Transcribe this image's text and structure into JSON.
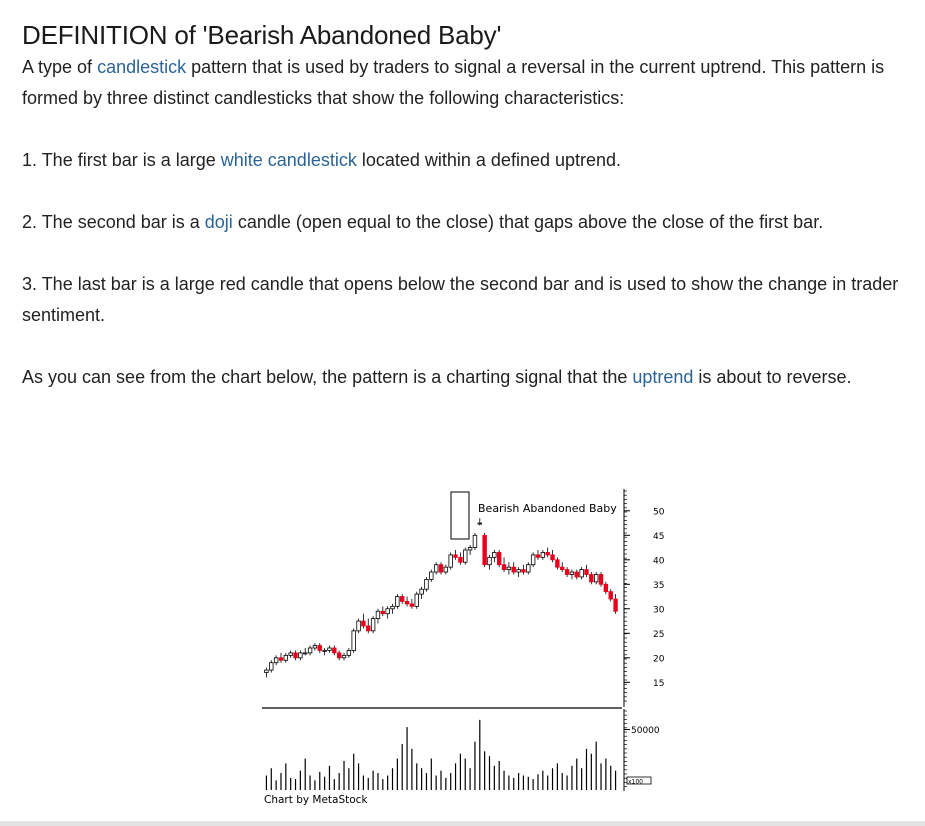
{
  "article": {
    "title": "DEFINITION of 'Bearish Abandoned Baby'",
    "intro": {
      "before": "A type of ",
      "link": "candlestick",
      "after": " pattern that is used by traders to signal a reversal in the current uptrend. This pattern is formed by three distinct candlesticks that show the following characteristics:"
    },
    "points": [
      {
        "before": "1. The first bar is a large ",
        "link": "white candlestick",
        "after": " located within a defined uptrend."
      },
      {
        "before": "2. The second bar is a ",
        "link": "doji",
        "after": " candle (open equal to the close) that gaps above the close of the first bar."
      },
      {
        "before": "3. The last bar is a large red candle that opens below the second bar and is used to show the change in trader sentiment.",
        "link": "",
        "after": ""
      }
    ],
    "closing": {
      "before": "As you can see from the chart below, the pattern is a charting signal that the ",
      "link": "uptrend",
      "after": " is about to reverse."
    }
  },
  "figure": {
    "annotation": "Bearish Abandoned Baby",
    "price_ticks": [
      "50",
      "45",
      "40",
      "35",
      "30",
      "25",
      "20",
      "15"
    ],
    "volume_tick": "50000",
    "volume_unit": "x100",
    "credit": "Chart by MetaStock",
    "colors": {
      "up": "#ffffff",
      "down": "#e8001c",
      "outline": "#000000"
    },
    "price_ylim": [
      12,
      52
    ],
    "ohlc": [
      [
        17.0,
        18.0,
        16.0,
        17.5
      ],
      [
        17.5,
        19.5,
        17.0,
        19.0
      ],
      [
        19.0,
        20.5,
        18.5,
        20.0
      ],
      [
        20.0,
        21.0,
        19.0,
        19.5
      ],
      [
        19.5,
        21.0,
        19.0,
        20.5
      ],
      [
        20.5,
        21.5,
        20.0,
        21.0
      ],
      [
        21.0,
        21.5,
        19.5,
        20.0
      ],
      [
        20.0,
        21.5,
        19.5,
        21.0
      ],
      [
        21.0,
        22.0,
        20.5,
        21.0
      ],
      [
        21.0,
        22.5,
        20.5,
        22.0
      ],
      [
        22.0,
        23.0,
        21.5,
        22.5
      ],
      [
        22.5,
        23.0,
        21.0,
        21.5
      ],
      [
        21.5,
        22.0,
        20.5,
        21.5
      ],
      [
        21.5,
        22.5,
        21.0,
        22.0
      ],
      [
        22.0,
        22.5,
        20.5,
        21.0
      ],
      [
        21.0,
        21.5,
        19.5,
        20.0
      ],
      [
        20.0,
        21.0,
        19.5,
        20.5
      ],
      [
        20.5,
        22.0,
        20.0,
        21.5
      ],
      [
        21.5,
        26.0,
        21.0,
        25.5
      ],
      [
        25.5,
        28.0,
        25.0,
        27.5
      ],
      [
        27.5,
        29.0,
        26.0,
        26.5
      ],
      [
        26.5,
        28.0,
        25.0,
        25.5
      ],
      [
        25.5,
        28.5,
        25.0,
        28.0
      ],
      [
        28.0,
        30.0,
        27.0,
        29.5
      ],
      [
        29.5,
        30.5,
        28.5,
        29.0
      ],
      [
        29.0,
        30.5,
        28.0,
        30.0
      ],
      [
        30.0,
        31.0,
        29.0,
        30.5
      ],
      [
        30.5,
        33.0,
        30.0,
        32.5
      ],
      [
        32.5,
        33.0,
        31.0,
        31.5
      ],
      [
        31.5,
        32.5,
        30.5,
        31.0
      ],
      [
        31.0,
        32.0,
        30.0,
        30.5
      ],
      [
        30.5,
        33.5,
        30.0,
        33.0
      ],
      [
        33.0,
        34.5,
        32.0,
        34.0
      ],
      [
        34.0,
        36.5,
        33.5,
        36.0
      ],
      [
        36.0,
        38.0,
        35.5,
        37.5
      ],
      [
        37.5,
        39.5,
        37.0,
        39.0
      ],
      [
        39.0,
        39.5,
        37.0,
        37.5
      ],
      [
        37.5,
        39.0,
        37.0,
        38.5
      ],
      [
        38.5,
        41.5,
        38.0,
        41.0
      ],
      [
        41.0,
        42.0,
        40.0,
        40.5
      ],
      [
        40.5,
        41.5,
        39.0,
        39.5
      ],
      [
        39.5,
        42.5,
        39.0,
        42.0
      ],
      [
        42.0,
        43.0,
        41.0,
        42.5
      ],
      [
        42.5,
        45.5,
        42.0,
        45.0
      ],
      [
        47.5,
        48.5,
        47.0,
        47.5
      ],
      [
        45.0,
        45.5,
        38.5,
        39.0
      ],
      [
        39.0,
        41.0,
        38.0,
        40.5
      ],
      [
        40.5,
        42.0,
        39.5,
        41.5
      ],
      [
        41.5,
        42.0,
        38.5,
        39.0
      ],
      [
        39.0,
        40.5,
        37.5,
        38.0
      ],
      [
        38.0,
        39.5,
        37.0,
        38.5
      ],
      [
        38.5,
        39.5,
        37.0,
        37.5
      ],
      [
        37.5,
        38.5,
        36.5,
        38.0
      ],
      [
        38.0,
        39.0,
        37.0,
        37.5
      ],
      [
        37.5,
        39.5,
        37.0,
        39.0
      ],
      [
        39.0,
        41.5,
        38.5,
        41.0
      ],
      [
        41.0,
        42.0,
        40.0,
        40.5
      ],
      [
        40.5,
        42.0,
        40.0,
        41.5
      ],
      [
        41.5,
        42.5,
        40.5,
        41.0
      ],
      [
        41.0,
        42.0,
        39.5,
        40.0
      ],
      [
        40.0,
        40.5,
        38.0,
        38.5
      ],
      [
        38.5,
        39.5,
        37.5,
        38.0
      ],
      [
        38.0,
        38.5,
        36.5,
        37.0
      ],
      [
        37.0,
        38.0,
        36.0,
        37.5
      ],
      [
        37.5,
        38.0,
        36.0,
        36.5
      ],
      [
        36.5,
        38.5,
        36.0,
        38.0
      ],
      [
        38.0,
        39.0,
        36.5,
        37.0
      ],
      [
        37.0,
        37.5,
        35.0,
        35.5
      ],
      [
        35.5,
        37.5,
        35.0,
        37.0
      ],
      [
        37.0,
        37.5,
        34.5,
        35.0
      ],
      [
        35.0,
        35.5,
        33.0,
        33.5
      ],
      [
        33.5,
        34.0,
        31.5,
        32.0
      ],
      [
        32.0,
        33.0,
        29.0,
        29.5
      ]
    ],
    "volume_ylim": [
      0,
      62000
    ],
    "volume": [
      12000,
      18000,
      8000,
      14000,
      22000,
      10000,
      9000,
      16000,
      26000,
      12000,
      8000,
      15000,
      11000,
      20000,
      9000,
      14000,
      24000,
      18000,
      30000,
      22000,
      12000,
      10000,
      16000,
      14000,
      9000,
      12000,
      18000,
      26000,
      38000,
      52000,
      34000,
      22000,
      18000,
      14000,
      26000,
      12000,
      16000,
      10000,
      14000,
      22000,
      30000,
      26000,
      18000,
      40000,
      58000,
      32000,
      28000,
      20000,
      24000,
      16000,
      12000,
      10000,
      14000,
      12000,
      11000,
      9000,
      13000,
      16000,
      12000,
      18000,
      22000,
      14000,
      12000,
      20000,
      26000,
      18000,
      34000,
      30000,
      40000,
      22000,
      26000,
      20000,
      16000
    ]
  }
}
